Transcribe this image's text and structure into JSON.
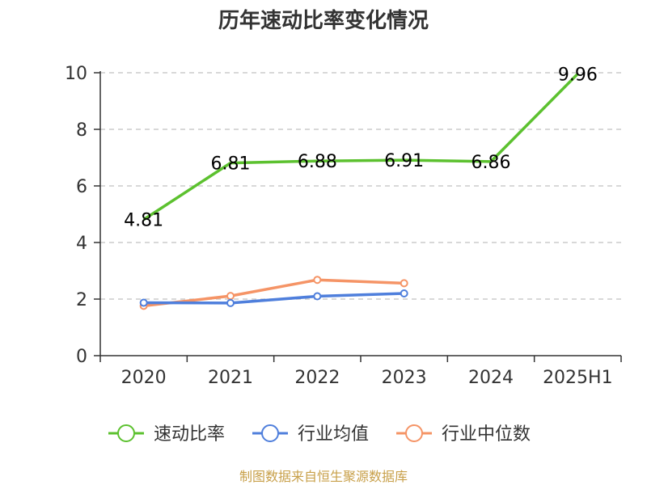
{
  "chart_data": {
    "type": "line",
    "title": "历年速动比率变化情况",
    "categories": [
      "2020",
      "2021",
      "2022",
      "2023",
      "2024",
      "2025H1"
    ],
    "ylim": [
      0,
      10
    ],
    "y_ticks": [
      "0",
      "2",
      "4",
      "6",
      "8",
      "10"
    ],
    "grid": "horizontal dashed",
    "legend_position": "bottom",
    "series": [
      {
        "name": "速动比率",
        "color": "#5cc12f",
        "values": [
          4.81,
          6.81,
          6.88,
          6.91,
          6.86,
          9.96
        ],
        "labels": [
          "4.81",
          "6.81",
          "6.88",
          "6.91",
          "6.86",
          "9.96"
        ]
      },
      {
        "name": "行业均值",
        "color": "#4f7fdc",
        "values": [
          1.87,
          1.86,
          2.1,
          2.2,
          null,
          null
        ]
      },
      {
        "name": "行业中位数",
        "color": "#f59466",
        "values": [
          1.76,
          2.11,
          2.68,
          2.56,
          null,
          null
        ]
      }
    ]
  },
  "source": {
    "text": "制图数据来自恒生聚源数据库",
    "color": "#c8a04a"
  }
}
